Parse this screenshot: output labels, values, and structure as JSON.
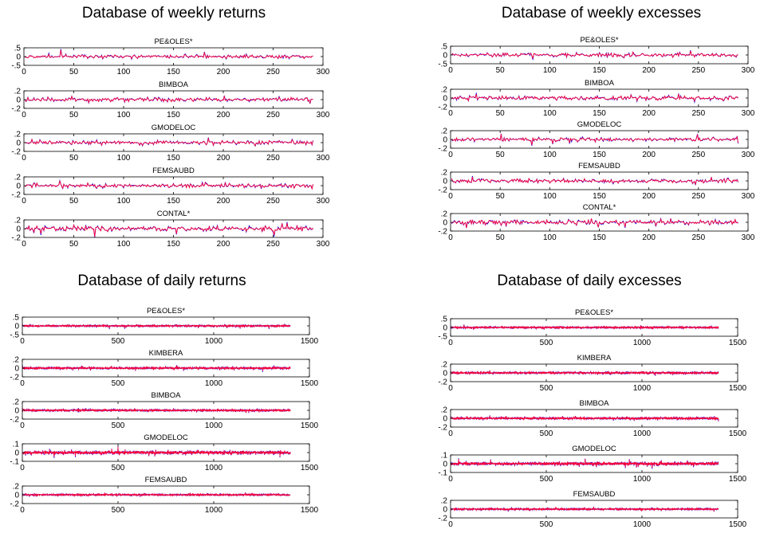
{
  "chart_data": [
    {
      "type": "line",
      "title": "Database of weekly returns",
      "legend": "none",
      "series_colors": [
        "#0000ff",
        "#ff0033"
      ],
      "subplots": [
        {
          "title": "PE&OLES*",
          "xlim": [
            0,
            300
          ],
          "xticks": [
            0,
            50,
            100,
            150,
            200,
            250,
            300
          ],
          "ylim": [
            -0.5,
            0.5
          ],
          "yticks": [
            -0.5,
            0,
            0.5
          ],
          "n_points": 290,
          "amplitude": 0.12
        },
        {
          "title": "BIMBOA",
          "xlim": [
            0,
            300
          ],
          "xticks": [
            0,
            50,
            100,
            150,
            200,
            250,
            300
          ],
          "ylim": [
            -0.2,
            0.2
          ],
          "yticks": [
            -0.2,
            0,
            0.2
          ],
          "n_points": 290,
          "amplitude": 0.05
        },
        {
          "title": "GMODELOC",
          "xlim": [
            0,
            300
          ],
          "xticks": [
            0,
            50,
            100,
            150,
            200,
            250,
            300
          ],
          "ylim": [
            -0.2,
            0.2
          ],
          "yticks": [
            -0.2,
            0,
            0.2
          ],
          "n_points": 290,
          "amplitude": 0.05
        },
        {
          "title": "FEMSAUBD",
          "xlim": [
            0,
            300
          ],
          "xticks": [
            0,
            50,
            100,
            150,
            200,
            250,
            300
          ],
          "ylim": [
            -0.2,
            0.2
          ],
          "yticks": [
            -0.2,
            0,
            0.2
          ],
          "n_points": 290,
          "amplitude": 0.05
        },
        {
          "title": "CONTAL*",
          "xlim": [
            0,
            300
          ],
          "xticks": [
            0,
            50,
            100,
            150,
            200,
            250,
            300
          ],
          "ylim": [
            -0.2,
            0.2
          ],
          "yticks": [
            -0.2,
            0,
            0.2
          ],
          "n_points": 290,
          "amplitude": 0.06
        }
      ]
    },
    {
      "type": "line",
      "title": "Database of weekly excesses",
      "legend": "none",
      "series_colors": [
        "#0000ff",
        "#ff0033"
      ],
      "subplots": [
        {
          "title": "PE&OLES*",
          "xlim": [
            0,
            300
          ],
          "xticks": [
            0,
            50,
            100,
            150,
            200,
            250,
            300
          ],
          "ylim": [
            -0.5,
            0.5
          ],
          "yticks": [
            -0.5,
            0,
            0.5
          ],
          "n_points": 290,
          "amplitude": 0.12
        },
        {
          "title": "BIMBOA",
          "xlim": [
            0,
            300
          ],
          "xticks": [
            0,
            50,
            100,
            150,
            200,
            250,
            300
          ],
          "ylim": [
            -0.2,
            0.2
          ],
          "yticks": [
            -0.2,
            0,
            0.2
          ],
          "n_points": 290,
          "amplitude": 0.05
        },
        {
          "title": "GMODELOC",
          "xlim": [
            0,
            300
          ],
          "xticks": [
            0,
            50,
            100,
            150,
            200,
            250,
            300
          ],
          "ylim": [
            -0.2,
            0.2
          ],
          "yticks": [
            -0.2,
            0,
            0.2
          ],
          "n_points": 290,
          "amplitude": 0.05
        },
        {
          "title": "FEMSAUBD",
          "xlim": [
            0,
            300
          ],
          "xticks": [
            0,
            50,
            100,
            150,
            200,
            250,
            300
          ],
          "ylim": [
            -0.2,
            0.2
          ],
          "yticks": [
            -0.2,
            0,
            0.2
          ],
          "n_points": 290,
          "amplitude": 0.05
        },
        {
          "title": "CONTAL*",
          "xlim": [
            0,
            300
          ],
          "xticks": [
            0,
            50,
            100,
            150,
            200,
            250,
            300
          ],
          "ylim": [
            -0.2,
            0.2
          ],
          "yticks": [
            -0.2,
            0,
            0.2
          ],
          "n_points": 290,
          "amplitude": 0.06
        }
      ]
    },
    {
      "type": "line",
      "title": "Database of daily returns",
      "legend": "none",
      "series_colors": [
        "#0000ff",
        "#ff0033"
      ],
      "subplots": [
        {
          "title": "PE&OLES*",
          "xlim": [
            0,
            1500
          ],
          "xticks": [
            0,
            500,
            1000,
            1500
          ],
          "ylim": [
            -0.5,
            0.5
          ],
          "yticks": [
            -0.5,
            0,
            0.5
          ],
          "n_points": 1400,
          "amplitude": 0.05
        },
        {
          "title": "KIMBERA",
          "xlim": [
            0,
            1500
          ],
          "xticks": [
            0,
            500,
            1000,
            1500
          ],
          "ylim": [
            -0.2,
            0.2
          ],
          "yticks": [
            -0.2,
            0,
            0.2
          ],
          "n_points": 1400,
          "amplitude": 0.025
        },
        {
          "title": "BIMBOA",
          "xlim": [
            0,
            1500
          ],
          "xticks": [
            0,
            500,
            1000,
            1500
          ],
          "ylim": [
            -0.2,
            0.2
          ],
          "yticks": [
            -0.2,
            0,
            0.2
          ],
          "n_points": 1400,
          "amplitude": 0.025
        },
        {
          "title": "GMODELOC",
          "xlim": [
            0,
            1500
          ],
          "xticks": [
            0,
            500,
            1000,
            1500
          ],
          "ylim": [
            -0.1,
            0.1
          ],
          "yticks": [
            -0.1,
            0,
            0.1
          ],
          "n_points": 1400,
          "amplitude": 0.02
        },
        {
          "title": "FEMSAUBD",
          "xlim": [
            0,
            1500
          ],
          "xticks": [
            0,
            500,
            1000,
            1500
          ],
          "ylim": [
            -0.2,
            0.2
          ],
          "yticks": [
            -0.2,
            0,
            0.2
          ],
          "n_points": 1400,
          "amplitude": 0.02
        }
      ]
    },
    {
      "type": "line",
      "title": "Database of daily excesses",
      "legend": "none",
      "series_colors": [
        "#0000ff",
        "#ff0033"
      ],
      "subplots": [
        {
          "title": "PE&OLES*",
          "xlim": [
            0,
            1500
          ],
          "xticks": [
            0,
            500,
            1000,
            1500
          ],
          "ylim": [
            -0.5,
            0.5
          ],
          "yticks": [
            -0.5,
            0,
            0.5
          ],
          "n_points": 1400,
          "amplitude": 0.05
        },
        {
          "title": "KIMBERA",
          "xlim": [
            0,
            1500
          ],
          "xticks": [
            0,
            500,
            1000,
            1500
          ],
          "ylim": [
            -0.2,
            0.2
          ],
          "yticks": [
            -0.2,
            0,
            0.2
          ],
          "n_points": 1400,
          "amplitude": 0.025
        },
        {
          "title": "BIMBOA",
          "xlim": [
            0,
            1500
          ],
          "xticks": [
            0,
            500,
            1000,
            1500
          ],
          "ylim": [
            -0.2,
            0.2
          ],
          "yticks": [
            -0.2,
            0,
            0.2
          ],
          "n_points": 1400,
          "amplitude": 0.025
        },
        {
          "title": "GMODELOC",
          "xlim": [
            0,
            1500
          ],
          "xticks": [
            0,
            500,
            1000,
            1500
          ],
          "ylim": [
            -0.1,
            0.1
          ],
          "yticks": [
            -0.1,
            0,
            0.1
          ],
          "n_points": 1400,
          "amplitude": 0.02
        },
        {
          "title": "FEMSAUBD",
          "xlim": [
            0,
            1500
          ],
          "xticks": [
            0,
            500,
            1000,
            1500
          ],
          "ylim": [
            -0.2,
            0.2
          ],
          "yticks": [
            -0.2,
            0,
            0.2
          ],
          "n_points": 1400,
          "amplitude": 0.02
        }
      ]
    }
  ]
}
